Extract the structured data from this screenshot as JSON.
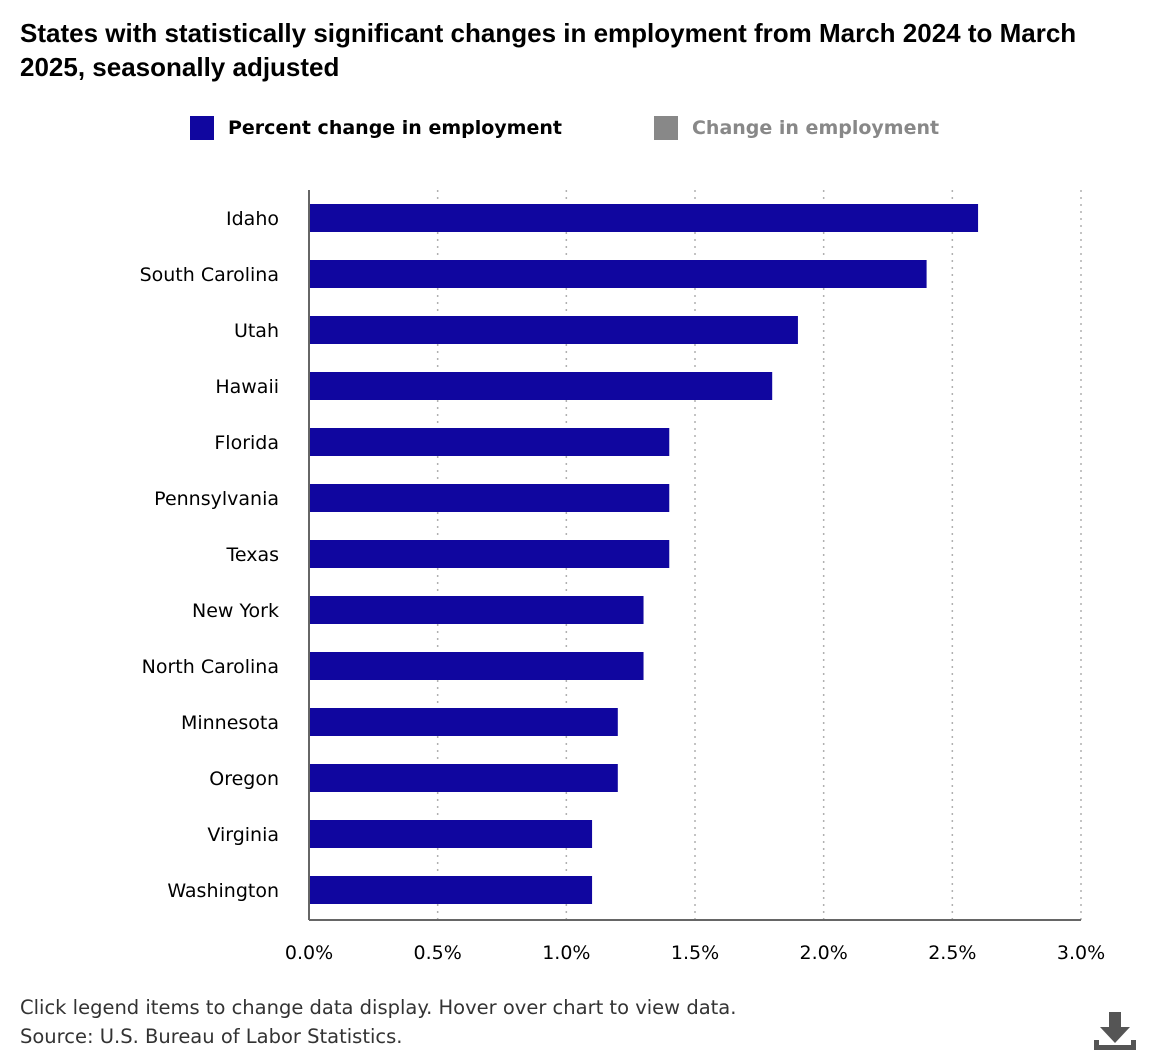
{
  "title": "States with statistically significant changes in employment from March 2024 to March 2025, seasonally adjusted",
  "legend": [
    {
      "label": "Percent change in employment",
      "color": "#10069f",
      "text_color": "#000000",
      "active": true
    },
    {
      "label": "Change in employment",
      "color": "#888888",
      "text_color": "#888888",
      "active": false
    }
  ],
  "chart_data": {
    "type": "bar",
    "orientation": "horizontal",
    "categories": [
      "Idaho",
      "South Carolina",
      "Utah",
      "Hawaii",
      "Florida",
      "Pennsylvania",
      "Texas",
      "New York",
      "North Carolina",
      "Minnesota",
      "Oregon",
      "Virginia",
      "Washington"
    ],
    "series": [
      {
        "name": "Percent change in employment",
        "values": [
          2.6,
          2.4,
          1.9,
          1.8,
          1.4,
          1.4,
          1.4,
          1.3,
          1.3,
          1.2,
          1.2,
          1.1,
          1.1
        ],
        "color": "#10069f"
      }
    ],
    "xlim": [
      0,
      3.0
    ],
    "xticks": [
      0,
      0.5,
      1.0,
      1.5,
      2.0,
      2.5,
      3.0
    ],
    "xtick_labels": [
      "0.0%",
      "0.5%",
      "1.0%",
      "1.5%",
      "2.0%",
      "2.5%",
      "3.0%"
    ],
    "grid": true,
    "grid_style": "dotted",
    "legend_position": "top"
  },
  "footer": {
    "note": "Click legend items to change data display. Hover over chart to view data.",
    "source": "Source: U.S. Bureau of Labor Statistics."
  },
  "icons": {
    "download": "download-icon"
  }
}
